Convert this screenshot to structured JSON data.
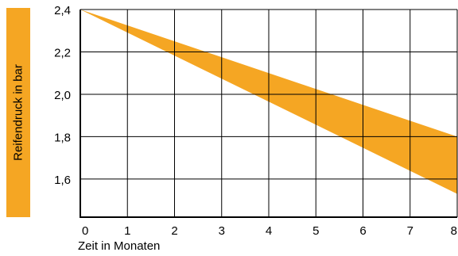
{
  "chart_data": {
    "type": "area",
    "title": "",
    "xlabel": "Zeit in Monaten",
    "ylabel": "Reifendruck in bar",
    "xlim": [
      0,
      8
    ],
    "ylim": [
      1.42,
      2.4
    ],
    "x_ticks": [
      "0",
      "1",
      "2",
      "3",
      "4",
      "5",
      "6",
      "7",
      "8"
    ],
    "y_ticks": [
      "2,4",
      "2,2",
      "2,0",
      "1,8",
      "1,6"
    ],
    "grid": true,
    "band": {
      "x": [
        0,
        8
      ],
      "upper": [
        2.4,
        1.8
      ],
      "lower": [
        2.4,
        1.53
      ]
    },
    "colors": {
      "band": "#f5a623",
      "label_bar": "#f5a623",
      "grid": "#000000"
    }
  }
}
